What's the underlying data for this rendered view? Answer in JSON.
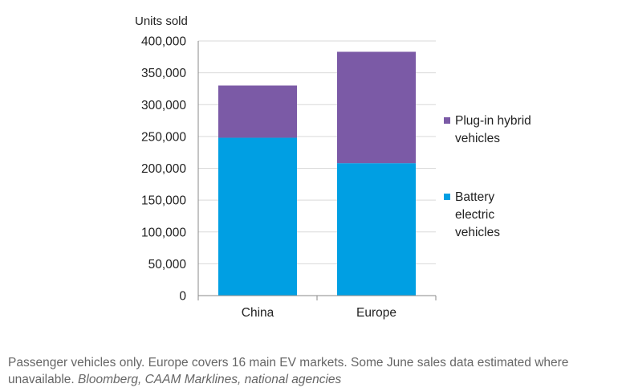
{
  "chart_data": {
    "type": "bar",
    "stacked": true,
    "categories": [
      "China",
      "Europe"
    ],
    "series": [
      {
        "name": "Battery electric vehicles",
        "values": [
          248000,
          208000
        ],
        "color": "#009fe3"
      },
      {
        "name": "Plug-in hybrid vehicles",
        "values": [
          82000,
          175000
        ],
        "color": "#7b5aa6"
      }
    ],
    "ylabel": "Units sold",
    "ylim": [
      0,
      400000
    ],
    "yticks": [
      "0",
      "50,000",
      "100,000",
      "150,000",
      "200,000",
      "250,000",
      "300,000",
      "350,000",
      "400,000"
    ],
    "ytick_values": [
      0,
      50000,
      100000,
      150000,
      200000,
      250000,
      300000,
      350000,
      400000
    ],
    "grid": true,
    "legend_position": "right",
    "legend": [
      {
        "lines": [
          "Plug-in hybrid",
          "vehicles"
        ],
        "color": "#7b5aa6"
      },
      {
        "lines": [
          "Battery",
          "electric",
          "vehicles"
        ],
        "color": "#009fe3"
      }
    ],
    "gridline_color": "#d9d9d9",
    "axis_color": "#888888"
  },
  "footnote": {
    "text": "Passenger vehicles only. Europe covers 16 main EV markets. Some June sales data estimated where unavailable.",
    "source": "Bloomberg, CAAM Marklines, national agencies"
  }
}
